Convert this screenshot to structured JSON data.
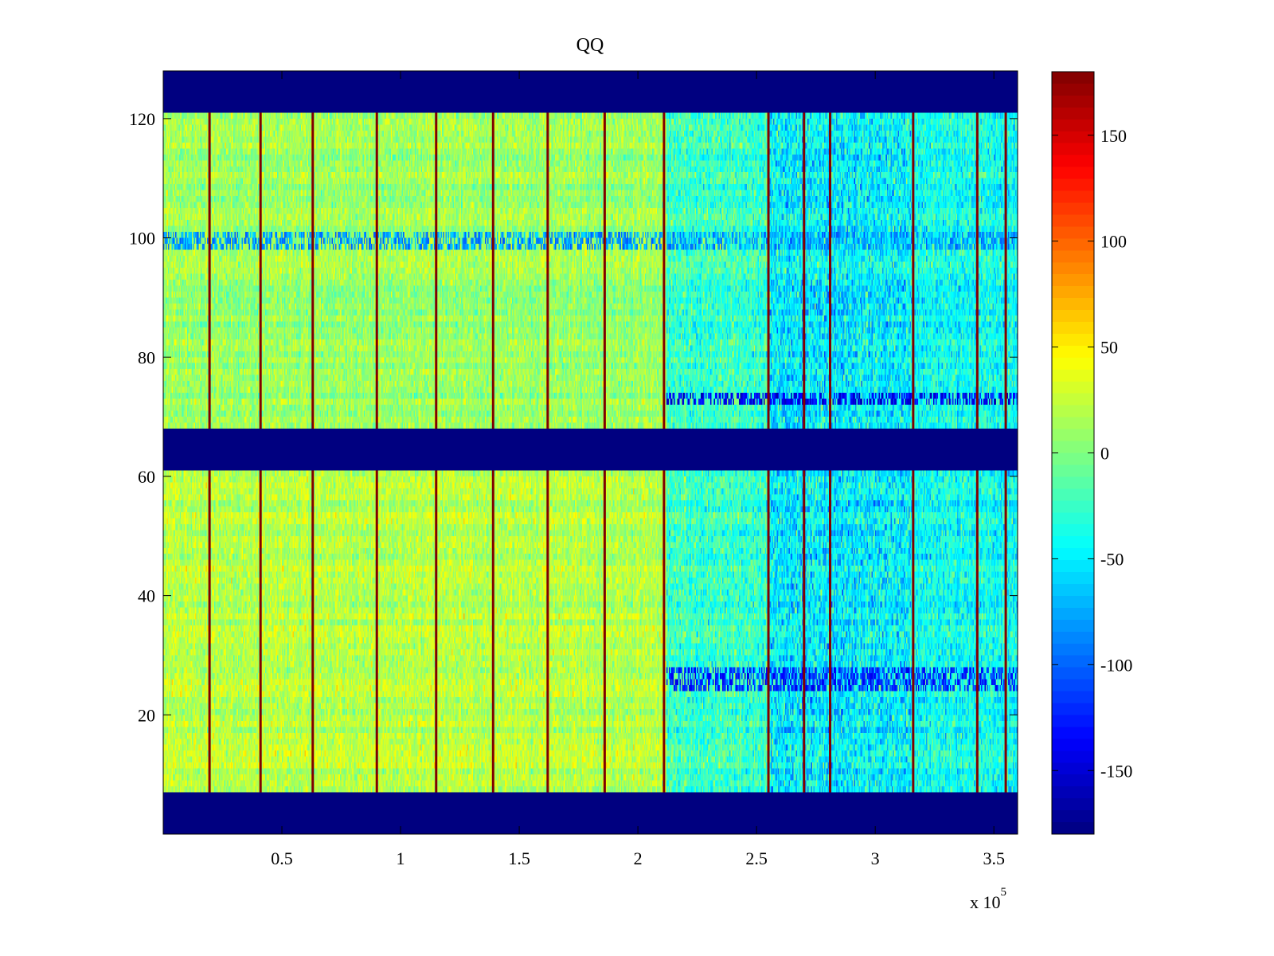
{
  "chart_data": {
    "type": "heatmap",
    "title": "QQ",
    "xlabel": "",
    "ylabel": "",
    "x_exponent_label": {
      "base": "x 10",
      "exp": "5"
    },
    "xlim": [
      0,
      360000
    ],
    "ylim": [
      0,
      128
    ],
    "x_ticks": [
      {
        "value": 50000,
        "label": "0.5"
      },
      {
        "value": 100000,
        "label": "1"
      },
      {
        "value": 150000,
        "label": "1.5"
      },
      {
        "value": 200000,
        "label": "2"
      },
      {
        "value": 250000,
        "label": "2.5"
      },
      {
        "value": 300000,
        "label": "3"
      },
      {
        "value": 350000,
        "label": "3.5"
      }
    ],
    "y_ticks": [
      {
        "value": 20,
        "label": "20"
      },
      {
        "value": 40,
        "label": "40"
      },
      {
        "value": 60,
        "label": "60"
      },
      {
        "value": 80,
        "label": "80"
      },
      {
        "value": 100,
        "label": "100"
      },
      {
        "value": 120,
        "label": "120"
      }
    ],
    "colorbar": {
      "colormap": "jet",
      "clim": [
        -180,
        180
      ],
      "ticks": [
        {
          "value": 150,
          "label": "150"
        },
        {
          "value": 100,
          "label": "100"
        },
        {
          "value": 50,
          "label": "50"
        },
        {
          "value": 0,
          "label": "0"
        },
        {
          "value": -50,
          "label": "-50"
        },
        {
          "value": -100,
          "label": "-100"
        },
        {
          "value": -150,
          "label": "-150"
        }
      ]
    },
    "fill_value": -180,
    "empty_row_bands": [
      [
        0,
        7
      ],
      [
        61,
        68
      ],
      [
        121,
        128
      ]
    ],
    "vertical_lines_x": [
      19500,
      41000,
      63000,
      90000,
      115000,
      139000,
      162000,
      186000,
      211000,
      255000,
      270000,
      281000,
      316000,
      343000,
      355000
    ],
    "vertical_line_value": 180,
    "horizontal_row_bands": [
      {
        "y_range": [
          98,
          101
        ],
        "x_range": [
          0,
          360000
        ],
        "value": -80
      },
      {
        "y_range": [
          72,
          74
        ],
        "x_range": [
          212000,
          360000
        ],
        "value": -140
      },
      {
        "y_range": [
          24,
          28
        ],
        "x_range": [
          212000,
          360000
        ],
        "value": -120
      }
    ],
    "regions": [
      {
        "x_range": [
          0,
          212000
        ],
        "y_range": [
          7,
          61
        ],
        "mean": 20,
        "spread": 25
      },
      {
        "x_range": [
          0,
          212000
        ],
        "y_range": [
          68,
          121
        ],
        "mean": 10,
        "spread": 25
      },
      {
        "x_range": [
          212000,
          255000
        ],
        "y_range": [
          7,
          121
        ],
        "mean": -25,
        "spread": 35
      },
      {
        "x_range": [
          255000,
          315000
        ],
        "y_range": [
          7,
          121
        ],
        "mean": -50,
        "spread": 45
      },
      {
        "x_range": [
          315000,
          360000
        ],
        "y_range": [
          7,
          121
        ],
        "mean": -40,
        "spread": 35
      }
    ]
  }
}
